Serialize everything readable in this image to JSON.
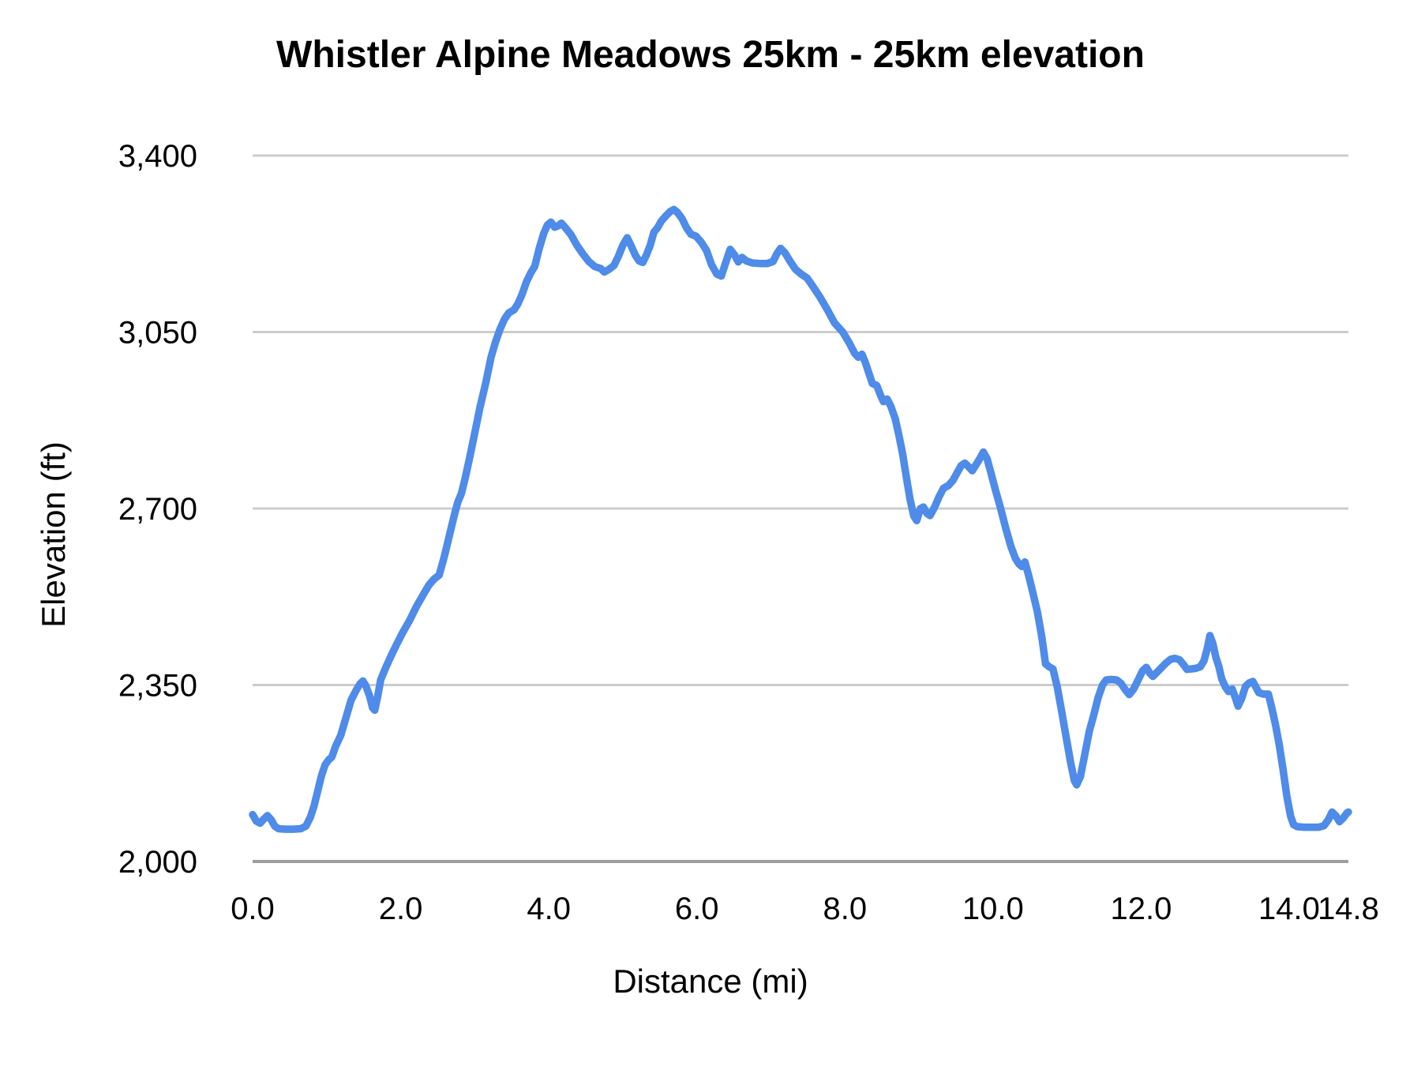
{
  "chart_data": {
    "type": "line",
    "title": "Whistler Alpine Meadows 25km - 25km elevation",
    "xlabel": "Distance (mi)",
    "ylabel": "Elevation (ft)",
    "xlim": [
      0,
      14.8
    ],
    "ylim": [
      2000,
      3400
    ],
    "grid": "horizontal-only",
    "legend": "none",
    "line_color": "#4f8be8",
    "grid_color": "#cccccc",
    "axis_line_color": "#9e9e9e",
    "x_ticks": [
      {
        "value": 0,
        "label": "0.0"
      },
      {
        "value": 2,
        "label": "2.0"
      },
      {
        "value": 4,
        "label": "4.0"
      },
      {
        "value": 6,
        "label": "6.0"
      },
      {
        "value": 8,
        "label": "8.0"
      },
      {
        "value": 10,
        "label": "10.0"
      },
      {
        "value": 12,
        "label": "12.0"
      },
      {
        "value": 14,
        "label": "14.0"
      },
      {
        "value": 14.8,
        "label": "14.8"
      }
    ],
    "y_ticks": [
      {
        "value": 2000,
        "label": "2,000"
      },
      {
        "value": 2350,
        "label": "2,350"
      },
      {
        "value": 2700,
        "label": "2,700"
      },
      {
        "value": 3050,
        "label": "3,050"
      },
      {
        "value": 3400,
        "label": "3,400"
      }
    ],
    "series": [
      {
        "name": "elevation",
        "points": [
          [
            0.0,
            2093
          ],
          [
            0.05,
            2080
          ],
          [
            0.1,
            2076
          ],
          [
            0.15,
            2084
          ],
          [
            0.2,
            2091
          ],
          [
            0.25,
            2083
          ],
          [
            0.3,
            2070
          ],
          [
            0.35,
            2065
          ],
          [
            0.45,
            2064
          ],
          [
            0.55,
            2064
          ],
          [
            0.65,
            2065
          ],
          [
            0.72,
            2070
          ],
          [
            0.78,
            2088
          ],
          [
            0.83,
            2110
          ],
          [
            0.88,
            2140
          ],
          [
            0.93,
            2170
          ],
          [
            0.98,
            2192
          ],
          [
            1.03,
            2202
          ],
          [
            1.07,
            2207
          ],
          [
            1.12,
            2228
          ],
          [
            1.19,
            2250
          ],
          [
            1.26,
            2285
          ],
          [
            1.33,
            2320
          ],
          [
            1.4,
            2340
          ],
          [
            1.45,
            2352
          ],
          [
            1.49,
            2358
          ],
          [
            1.53,
            2348
          ],
          [
            1.58,
            2328
          ],
          [
            1.62,
            2305
          ],
          [
            1.65,
            2300
          ],
          [
            1.69,
            2328
          ],
          [
            1.73,
            2360
          ],
          [
            1.8,
            2385
          ],
          [
            1.87,
            2408
          ],
          [
            1.95,
            2432
          ],
          [
            2.03,
            2455
          ],
          [
            2.12,
            2478
          ],
          [
            2.21,
            2505
          ],
          [
            2.3,
            2528
          ],
          [
            2.38,
            2548
          ],
          [
            2.45,
            2560
          ],
          [
            2.52,
            2568
          ],
          [
            2.58,
            2600
          ],
          [
            2.63,
            2630
          ],
          [
            2.68,
            2660
          ],
          [
            2.73,
            2690
          ],
          [
            2.77,
            2712
          ],
          [
            2.82,
            2730
          ],
          [
            2.87,
            2760
          ],
          [
            2.93,
            2800
          ],
          [
            3.0,
            2850
          ],
          [
            3.07,
            2900
          ],
          [
            3.15,
            2950
          ],
          [
            3.22,
            3000
          ],
          [
            3.28,
            3030
          ],
          [
            3.34,
            3055
          ],
          [
            3.4,
            3075
          ],
          [
            3.46,
            3088
          ],
          [
            3.53,
            3094
          ],
          [
            3.58,
            3105
          ],
          [
            3.64,
            3125
          ],
          [
            3.7,
            3150
          ],
          [
            3.76,
            3168
          ],
          [
            3.81,
            3180
          ],
          [
            3.87,
            3215
          ],
          [
            3.93,
            3245
          ],
          [
            3.98,
            3262
          ],
          [
            4.03,
            3268
          ],
          [
            4.08,
            3258
          ],
          [
            4.13,
            3261
          ],
          [
            4.17,
            3266
          ],
          [
            4.23,
            3256
          ],
          [
            4.3,
            3243
          ],
          [
            4.38,
            3222
          ],
          [
            4.46,
            3205
          ],
          [
            4.54,
            3190
          ],
          [
            4.62,
            3180
          ],
          [
            4.7,
            3176
          ],
          [
            4.75,
            3169
          ],
          [
            4.81,
            3174
          ],
          [
            4.88,
            3182
          ],
          [
            4.94,
            3200
          ],
          [
            5.0,
            3222
          ],
          [
            5.06,
            3237
          ],
          [
            5.11,
            3222
          ],
          [
            5.17,
            3202
          ],
          [
            5.22,
            3191
          ],
          [
            5.27,
            3188
          ],
          [
            5.32,
            3203
          ],
          [
            5.37,
            3222
          ],
          [
            5.42,
            3248
          ],
          [
            5.47,
            3257
          ],
          [
            5.52,
            3270
          ],
          [
            5.58,
            3280
          ],
          [
            5.64,
            3289
          ],
          [
            5.69,
            3293
          ],
          [
            5.74,
            3287
          ],
          [
            5.8,
            3275
          ],
          [
            5.86,
            3257
          ],
          [
            5.92,
            3244
          ],
          [
            5.99,
            3240
          ],
          [
            6.06,
            3228
          ],
          [
            6.13,
            3212
          ],
          [
            6.2,
            3183
          ],
          [
            6.27,
            3165
          ],
          [
            6.33,
            3161
          ],
          [
            6.39,
            3188
          ],
          [
            6.45,
            3214
          ],
          [
            6.51,
            3203
          ],
          [
            6.56,
            3189
          ],
          [
            6.61,
            3198
          ],
          [
            6.67,
            3191
          ],
          [
            6.75,
            3187
          ],
          [
            6.85,
            3186
          ],
          [
            6.95,
            3186
          ],
          [
            7.03,
            3190
          ],
          [
            7.08,
            3205
          ],
          [
            7.13,
            3216
          ],
          [
            7.19,
            3207
          ],
          [
            7.26,
            3190
          ],
          [
            7.33,
            3175
          ],
          [
            7.41,
            3165
          ],
          [
            7.49,
            3157
          ],
          [
            7.57,
            3140
          ],
          [
            7.66,
            3120
          ],
          [
            7.76,
            3095
          ],
          [
            7.86,
            3068
          ],
          [
            7.97,
            3050
          ],
          [
            8.06,
            3028
          ],
          [
            8.13,
            3008
          ],
          [
            8.18,
            3000
          ],
          [
            8.23,
            3006
          ],
          [
            8.28,
            2988
          ],
          [
            8.32,
            2970
          ],
          [
            8.37,
            2948
          ],
          [
            8.43,
            2944
          ],
          [
            8.48,
            2925
          ],
          [
            8.52,
            2912
          ],
          [
            8.57,
            2917
          ],
          [
            8.62,
            2903
          ],
          [
            8.68,
            2878
          ],
          [
            8.73,
            2845
          ],
          [
            8.78,
            2808
          ],
          [
            8.83,
            2762
          ],
          [
            8.88,
            2718
          ],
          [
            8.93,
            2685
          ],
          [
            8.97,
            2676
          ],
          [
            9.02,
            2700
          ],
          [
            9.06,
            2703
          ],
          [
            9.11,
            2690
          ],
          [
            9.15,
            2686
          ],
          [
            9.21,
            2702
          ],
          [
            9.27,
            2723
          ],
          [
            9.33,
            2740
          ],
          [
            9.4,
            2746
          ],
          [
            9.46,
            2756
          ],
          [
            9.52,
            2772
          ],
          [
            9.57,
            2785
          ],
          [
            9.62,
            2790
          ],
          [
            9.67,
            2783
          ],
          [
            9.72,
            2775
          ],
          [
            9.78,
            2789
          ],
          [
            9.83,
            2801
          ],
          [
            9.87,
            2812
          ],
          [
            9.92,
            2799
          ],
          [
            9.97,
            2772
          ],
          [
            10.03,
            2738
          ],
          [
            10.1,
            2702
          ],
          [
            10.17,
            2662
          ],
          [
            10.24,
            2626
          ],
          [
            10.3,
            2602
          ],
          [
            10.35,
            2590
          ],
          [
            10.39,
            2585
          ],
          [
            10.43,
            2594
          ],
          [
            10.48,
            2568
          ],
          [
            10.54,
            2532
          ],
          [
            10.6,
            2495
          ],
          [
            10.66,
            2445
          ],
          [
            10.71,
            2392
          ],
          [
            10.76,
            2386
          ],
          [
            10.81,
            2382
          ],
          [
            10.87,
            2345
          ],
          [
            10.93,
            2295
          ],
          [
            10.99,
            2245
          ],
          [
            11.05,
            2195
          ],
          [
            11.1,
            2160
          ],
          [
            11.13,
            2152
          ],
          [
            11.18,
            2168
          ],
          [
            11.24,
            2212
          ],
          [
            11.3,
            2258
          ],
          [
            11.36,
            2290
          ],
          [
            11.42,
            2325
          ],
          [
            11.48,
            2350
          ],
          [
            11.53,
            2360
          ],
          [
            11.6,
            2361
          ],
          [
            11.67,
            2360
          ],
          [
            11.73,
            2353
          ],
          [
            11.79,
            2340
          ],
          [
            11.84,
            2331
          ],
          [
            11.9,
            2342
          ],
          [
            11.96,
            2360
          ],
          [
            12.02,
            2378
          ],
          [
            12.07,
            2385
          ],
          [
            12.12,
            2373
          ],
          [
            12.16,
            2367
          ],
          [
            12.22,
            2376
          ],
          [
            12.28,
            2385
          ],
          [
            12.34,
            2394
          ],
          [
            12.4,
            2401
          ],
          [
            12.46,
            2403
          ],
          [
            12.52,
            2400
          ],
          [
            12.57,
            2391
          ],
          [
            12.62,
            2381
          ],
          [
            12.68,
            2382
          ],
          [
            12.74,
            2383
          ],
          [
            12.8,
            2386
          ],
          [
            12.85,
            2398
          ],
          [
            12.89,
            2420
          ],
          [
            12.93,
            2448
          ],
          [
            12.97,
            2432
          ],
          [
            13.01,
            2405
          ],
          [
            13.05,
            2387
          ],
          [
            13.09,
            2362
          ],
          [
            13.14,
            2346
          ],
          [
            13.18,
            2337
          ],
          [
            13.23,
            2342
          ],
          [
            13.27,
            2326
          ],
          [
            13.31,
            2308
          ],
          [
            13.36,
            2324
          ],
          [
            13.41,
            2347
          ],
          [
            13.46,
            2354
          ],
          [
            13.51,
            2357
          ],
          [
            13.55,
            2346
          ],
          [
            13.59,
            2335
          ],
          [
            13.65,
            2332
          ],
          [
            13.72,
            2332
          ],
          [
            13.77,
            2302
          ],
          [
            13.82,
            2268
          ],
          [
            13.87,
            2228
          ],
          [
            13.92,
            2180
          ],
          [
            13.97,
            2128
          ],
          [
            14.02,
            2090
          ],
          [
            14.06,
            2073
          ],
          [
            14.11,
            2069
          ],
          [
            14.2,
            2068
          ],
          [
            14.3,
            2068
          ],
          [
            14.4,
            2068
          ],
          [
            14.47,
            2071
          ],
          [
            14.53,
            2083
          ],
          [
            14.58,
            2098
          ],
          [
            14.63,
            2091
          ],
          [
            14.68,
            2079
          ],
          [
            14.73,
            2086
          ],
          [
            14.78,
            2096
          ],
          [
            14.8,
            2098
          ]
        ]
      }
    ]
  }
}
